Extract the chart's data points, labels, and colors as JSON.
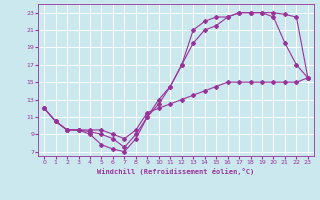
{
  "xlabel": "Windchill (Refroidissement éolien,°C)",
  "xlim": [
    -0.5,
    23.5
  ],
  "ylim": [
    6.5,
    24
  ],
  "xticks": [
    0,
    1,
    2,
    3,
    4,
    5,
    6,
    7,
    8,
    9,
    10,
    11,
    12,
    13,
    14,
    15,
    16,
    17,
    18,
    19,
    20,
    21,
    22,
    23
  ],
  "yticks": [
    7,
    9,
    11,
    13,
    15,
    17,
    19,
    21,
    23
  ],
  "bg_color": "#cce8ef",
  "grid_color": "#ffffff",
  "line_color": "#993399",
  "curve1_x": [
    0,
    1,
    2,
    3,
    4,
    5,
    6,
    7,
    8,
    9,
    10,
    11,
    12,
    13,
    14,
    15,
    16,
    17,
    18,
    19,
    20,
    21,
    22,
    23
  ],
  "curve1_y": [
    12,
    10.5,
    9.5,
    9.5,
    9.0,
    7.8,
    7.3,
    7.0,
    8.5,
    11.0,
    13.0,
    14.5,
    17.0,
    19.5,
    21.0,
    21.5,
    22.5,
    23.0,
    23.0,
    23.0,
    22.5,
    19.5,
    17.0,
    15.5
  ],
  "curve2_x": [
    0,
    1,
    2,
    3,
    4,
    5,
    6,
    7,
    8,
    9,
    10,
    11,
    12,
    13,
    14,
    15,
    16,
    17,
    18,
    19,
    20,
    21,
    22,
    23
  ],
  "curve2_y": [
    12,
    10.5,
    9.5,
    9.5,
    9.3,
    9.0,
    8.5,
    7.5,
    9.0,
    11.0,
    12.5,
    14.5,
    17.0,
    21.0,
    22.0,
    22.5,
    22.5,
    23.0,
    23.0,
    23.0,
    23.0,
    22.8,
    22.5,
    15.5
  ],
  "curve3_x": [
    0,
    1,
    2,
    3,
    4,
    5,
    6,
    7,
    8,
    9,
    10,
    11,
    12,
    13,
    14,
    15,
    16,
    17,
    18,
    19,
    20,
    21,
    22,
    23
  ],
  "curve3_y": [
    12,
    10.5,
    9.5,
    9.5,
    9.5,
    9.5,
    9.0,
    8.5,
    9.5,
    11.5,
    12.0,
    12.5,
    13.0,
    13.5,
    14.0,
    14.5,
    15.0,
    15.0,
    15.0,
    15.0,
    15.0,
    15.0,
    15.0,
    15.5
  ]
}
